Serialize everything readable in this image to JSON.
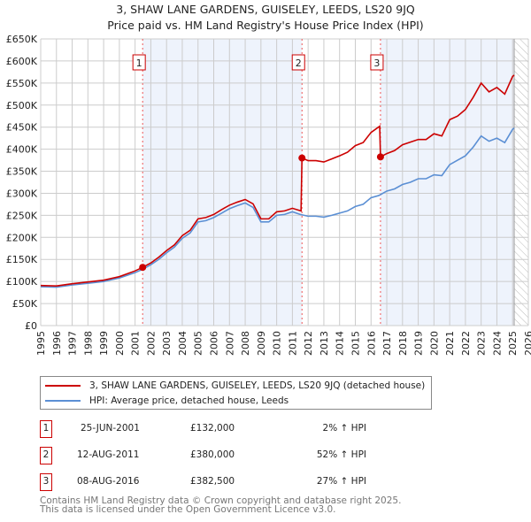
{
  "header": {
    "title": "3, SHAW LANE GARDENS, GUISELEY, LEEDS, LS20 9JQ",
    "subtitle": "Price paid vs. HM Land Registry's House Price Index (HPI)"
  },
  "chart_data": {
    "type": "line",
    "title": "3, SHAW LANE GARDENS, GUISELEY, LEEDS, LS20 9JQ",
    "subtitle": "Price paid vs. HM Land Registry's House Price Index (HPI)",
    "xlim": [
      1995,
      2026
    ],
    "ylim": [
      0,
      650000
    ],
    "x_ticks": [
      "1995",
      "1996",
      "1997",
      "1998",
      "1999",
      "2000",
      "2001",
      "2002",
      "2003",
      "2004",
      "2005",
      "2006",
      "2007",
      "2008",
      "2009",
      "2010",
      "2011",
      "2012",
      "2013",
      "2014",
      "2015",
      "2016",
      "2017",
      "2018",
      "2019",
      "2020",
      "2021",
      "2022",
      "2023",
      "2024",
      "2025",
      "2026"
    ],
    "y_ticks": [
      {
        "v": 0,
        "label": "£0"
      },
      {
        "v": 50000,
        "label": "£50K"
      },
      {
        "v": 100000,
        "label": "£100K"
      },
      {
        "v": 150000,
        "label": "£150K"
      },
      {
        "v": 200000,
        "label": "£200K"
      },
      {
        "v": 250000,
        "label": "£250K"
      },
      {
        "v": 300000,
        "label": "£300K"
      },
      {
        "v": 350000,
        "label": "£350K"
      },
      {
        "v": 400000,
        "label": "£400K"
      },
      {
        "v": 450000,
        "label": "£450K"
      },
      {
        "v": 500000,
        "label": "£500K"
      },
      {
        "v": 550000,
        "label": "£550K"
      },
      {
        "v": 600000,
        "label": "£600K"
      },
      {
        "v": 650000,
        "label": "£650K"
      }
    ],
    "grid": true,
    "colors": {
      "property": "#cc0000",
      "hpi": "#5b8fd4",
      "shade": "#eef3fc"
    },
    "shaded_ranges": [
      [
        2001.48,
        2011.61
      ],
      [
        2016.6,
        2025.1
      ]
    ],
    "hatched_from": 2025.1,
    "series": [
      {
        "name": "3, SHAW LANE GARDENS, GUISELEY, LEEDS, LS20 9JQ (detached house)",
        "points": [
          [
            1995,
            91000
          ],
          [
            1996,
            90000
          ],
          [
            1997,
            95000
          ],
          [
            1998,
            99000
          ],
          [
            1999,
            103000
          ],
          [
            2000,
            111000
          ],
          [
            2001,
            124000
          ],
          [
            2001.48,
            132000
          ],
          [
            2002,
            142000
          ],
          [
            2002.5,
            155000
          ],
          [
            2003,
            170000
          ],
          [
            2003.5,
            183000
          ],
          [
            2004,
            204000
          ],
          [
            2004.5,
            216000
          ],
          [
            2005,
            242000
          ],
          [
            2005.5,
            245000
          ],
          [
            2006,
            252000
          ],
          [
            2006.5,
            263000
          ],
          [
            2007,
            273000
          ],
          [
            2007.5,
            280000
          ],
          [
            2008,
            286000
          ],
          [
            2008.5,
            276000
          ],
          [
            2009,
            242000
          ],
          [
            2009.5,
            242000
          ],
          [
            2010,
            258000
          ],
          [
            2010.5,
            260000
          ],
          [
            2011,
            266000
          ],
          [
            2011.55,
            260000
          ],
          [
            2011.61,
            380000
          ],
          [
            2012,
            374000
          ],
          [
            2012.5,
            374000
          ],
          [
            2013,
            371000
          ],
          [
            2013.5,
            378000
          ],
          [
            2014,
            385000
          ],
          [
            2014.5,
            393000
          ],
          [
            2015,
            408000
          ],
          [
            2015.5,
            415000
          ],
          [
            2016,
            438000
          ],
          [
            2016.55,
            452000
          ],
          [
            2016.6,
            382500
          ],
          [
            2017,
            390000
          ],
          [
            2017.5,
            397000
          ],
          [
            2018,
            410000
          ],
          [
            2018.5,
            416000
          ],
          [
            2019,
            422000
          ],
          [
            2019.5,
            422000
          ],
          [
            2020,
            435000
          ],
          [
            2020.5,
            430000
          ],
          [
            2021,
            467000
          ],
          [
            2021.5,
            475000
          ],
          [
            2022,
            490000
          ],
          [
            2022.5,
            518000
          ],
          [
            2023,
            550000
          ],
          [
            2023.5,
            530000
          ],
          [
            2024,
            540000
          ],
          [
            2024.5,
            525000
          ],
          [
            2025,
            565000
          ],
          [
            2025.1,
            568000
          ]
        ]
      },
      {
        "name": "HPI: Average price, detached house, Leeds",
        "points": [
          [
            1995,
            88000
          ],
          [
            1996,
            87000
          ],
          [
            1997,
            92000
          ],
          [
            1998,
            96000
          ],
          [
            1999,
            100000
          ],
          [
            2000,
            108000
          ],
          [
            2001,
            120000
          ],
          [
            2001.5,
            128000
          ],
          [
            2002,
            138000
          ],
          [
            2002.5,
            150000
          ],
          [
            2003,
            165000
          ],
          [
            2003.5,
            178000
          ],
          [
            2004,
            198000
          ],
          [
            2004.5,
            210000
          ],
          [
            2005,
            235000
          ],
          [
            2005.5,
            238000
          ],
          [
            2006,
            245000
          ],
          [
            2006.5,
            255000
          ],
          [
            2007,
            265000
          ],
          [
            2007.5,
            272000
          ],
          [
            2008,
            278000
          ],
          [
            2008.5,
            268000
          ],
          [
            2009,
            235000
          ],
          [
            2009.5,
            235000
          ],
          [
            2010,
            250000
          ],
          [
            2010.5,
            252000
          ],
          [
            2011,
            258000
          ],
          [
            2011.5,
            252000
          ],
          [
            2012,
            248000
          ],
          [
            2012.5,
            248000
          ],
          [
            2013,
            246000
          ],
          [
            2013.5,
            250000
          ],
          [
            2014,
            255000
          ],
          [
            2014.5,
            260000
          ],
          [
            2015,
            270000
          ],
          [
            2015.5,
            275000
          ],
          [
            2016,
            290000
          ],
          [
            2016.5,
            295000
          ],
          [
            2017,
            305000
          ],
          [
            2017.5,
            310000
          ],
          [
            2018,
            320000
          ],
          [
            2018.5,
            325000
          ],
          [
            2019,
            333000
          ],
          [
            2019.5,
            333000
          ],
          [
            2020,
            342000
          ],
          [
            2020.5,
            340000
          ],
          [
            2021,
            365000
          ],
          [
            2021.5,
            375000
          ],
          [
            2022,
            385000
          ],
          [
            2022.5,
            405000
          ],
          [
            2023,
            430000
          ],
          [
            2023.5,
            418000
          ],
          [
            2024,
            425000
          ],
          [
            2024.5,
            415000
          ],
          [
            2025,
            445000
          ],
          [
            2025.1,
            448000
          ]
        ]
      }
    ],
    "sales": [
      {
        "label": "1",
        "x": 2001.48,
        "y": 132000
      },
      {
        "label": "2",
        "x": 2011.61,
        "y": 380000
      },
      {
        "label": "3",
        "x": 2016.6,
        "y": 382500
      }
    ]
  },
  "legend": {
    "property": "3, SHAW LANE GARDENS, GUISELEY, LEEDS, LS20 9JQ (detached house)",
    "hpi": "HPI: Average price, detached house, Leeds"
  },
  "transactions": [
    {
      "num": "1",
      "date": "25-JUN-2001",
      "price": "£132,000",
      "hpi": "2% ↑ HPI"
    },
    {
      "num": "2",
      "date": "12-AUG-2011",
      "price": "£380,000",
      "hpi": "52% ↑ HPI"
    },
    {
      "num": "3",
      "date": "08-AUG-2016",
      "price": "£382,500",
      "hpi": "27% ↑ HPI"
    }
  ],
  "footer": {
    "line1": "Contains HM Land Registry data © Crown copyright and database right 2025.",
    "line2": "This data is licensed under the Open Government Licence v3.0."
  }
}
